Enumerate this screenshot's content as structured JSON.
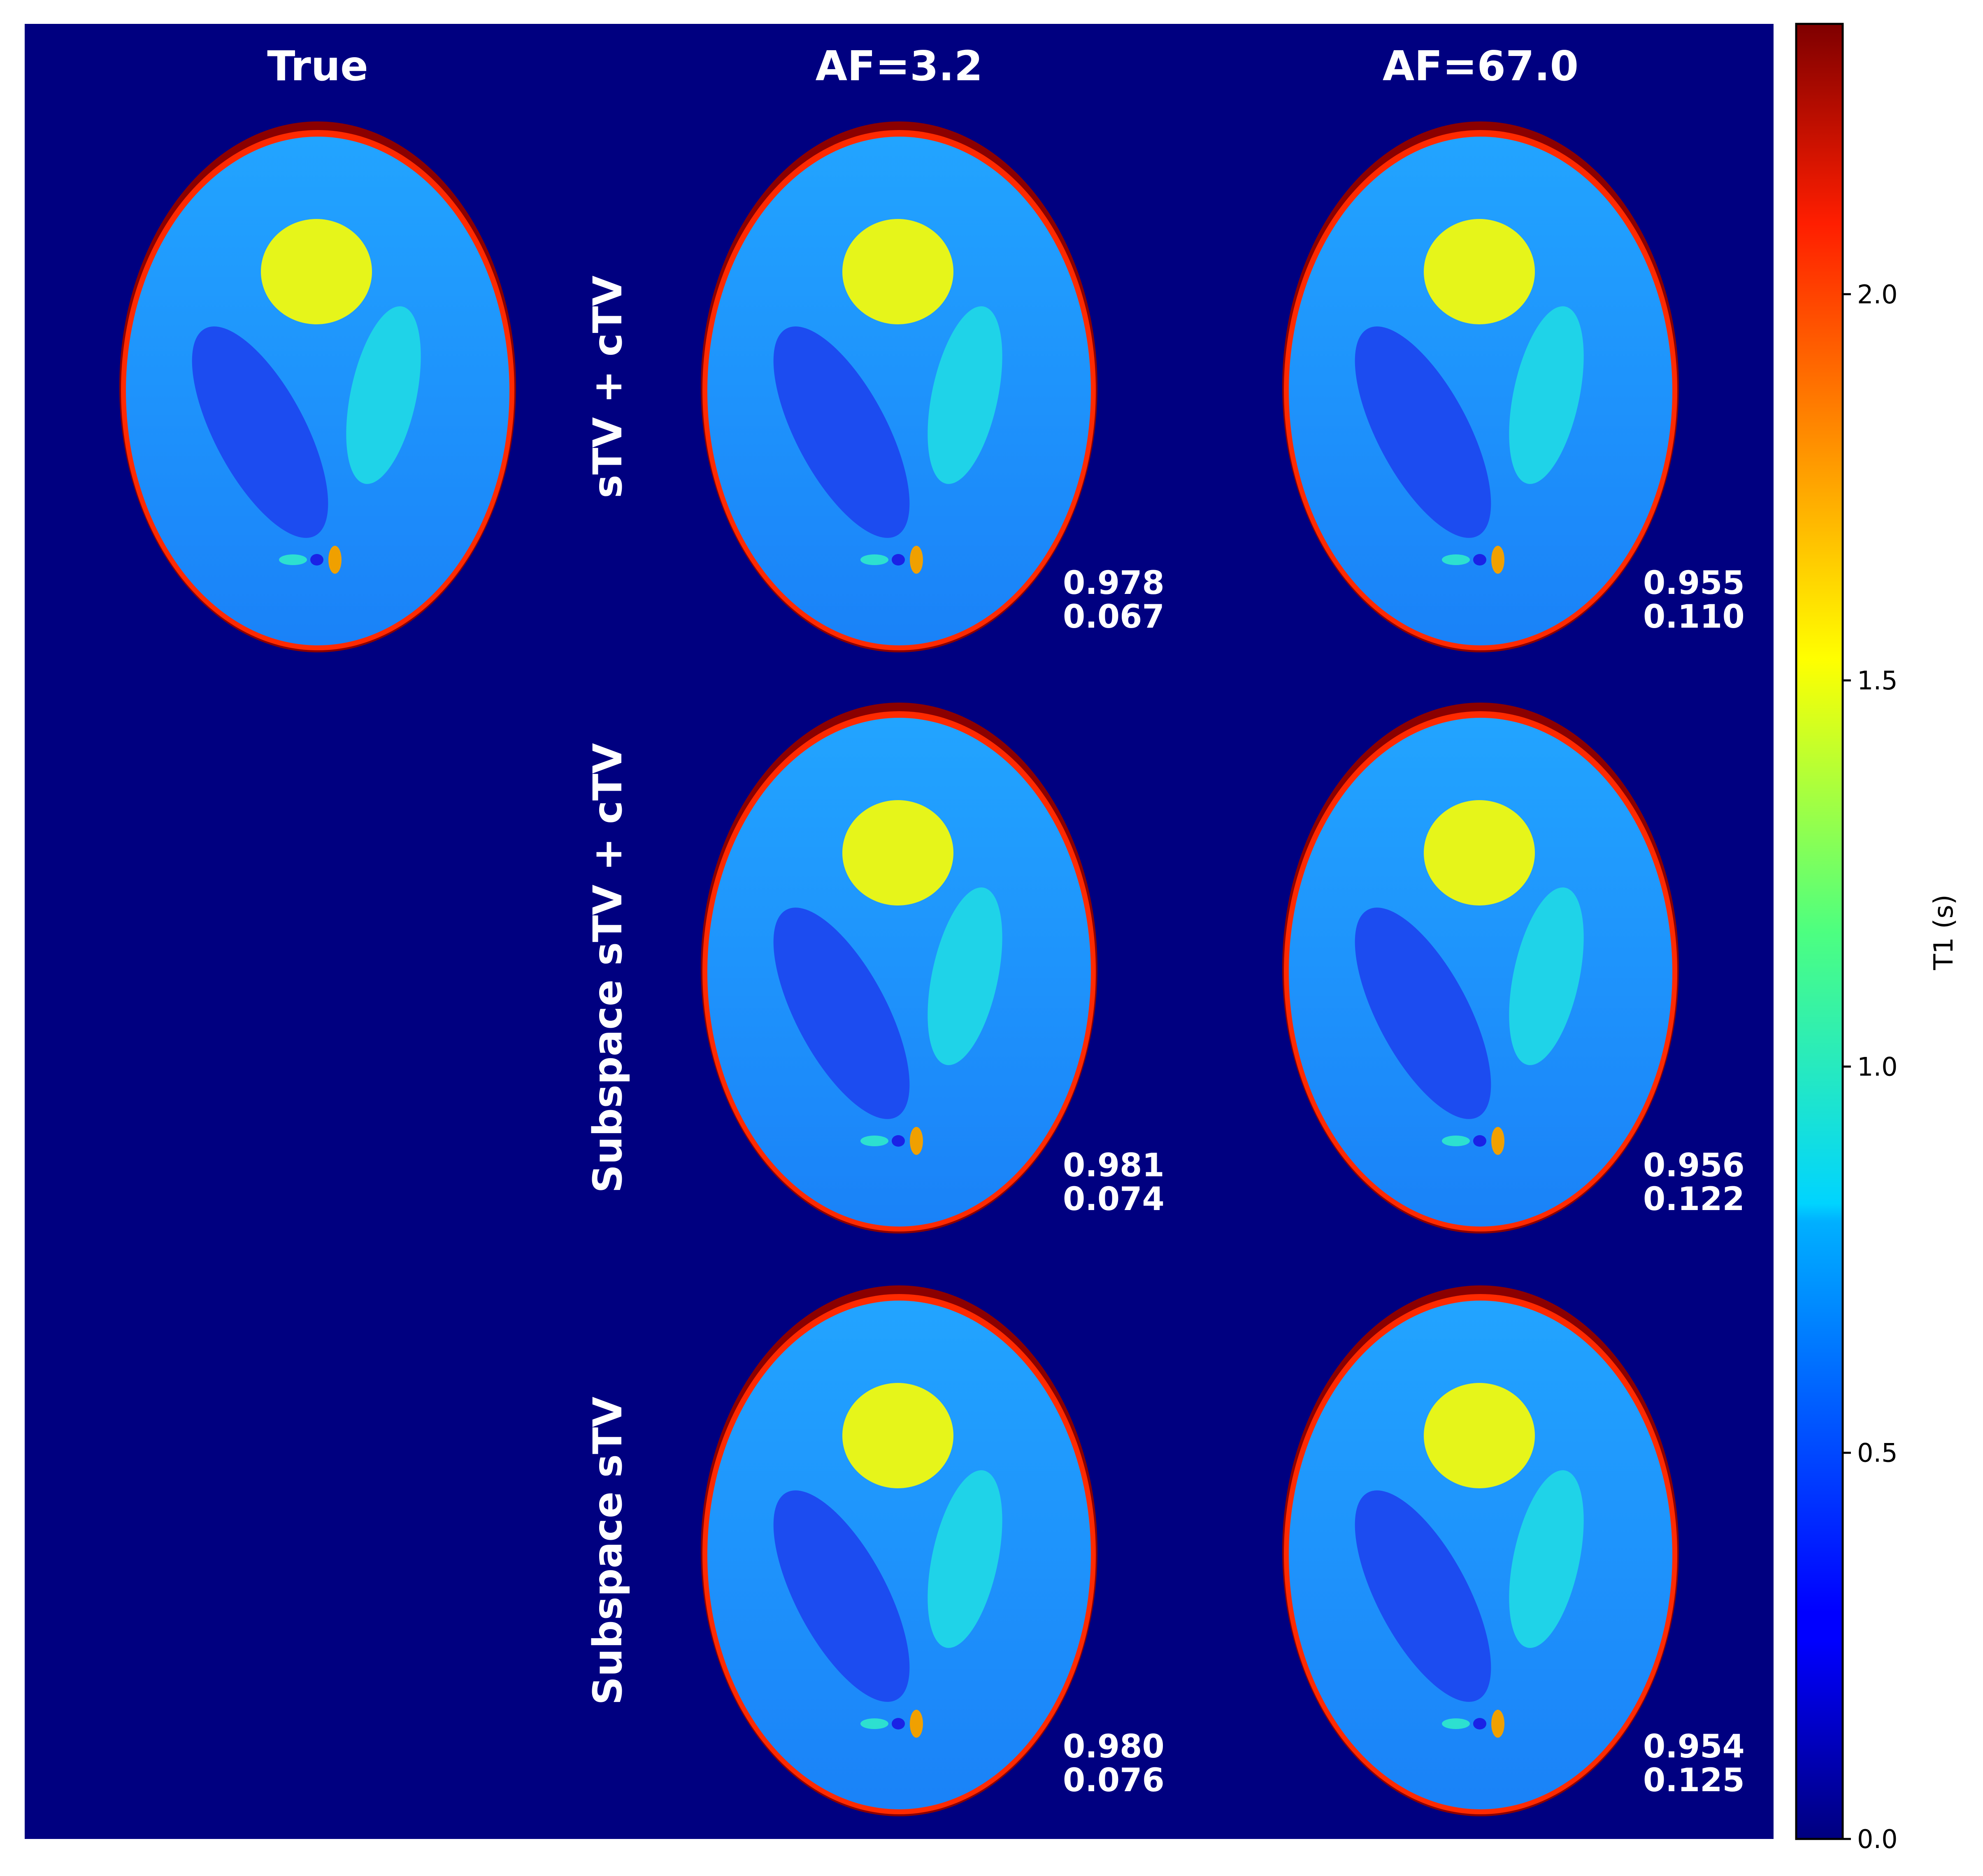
{
  "column_headers": {
    "true": "True",
    "af_low": "AF=3.2",
    "af_high": "AF=67.0"
  },
  "row_labels": {
    "row1": "sTV + cTV",
    "row2": "Subspace sTV + cTV",
    "row3": "Subspace sTV"
  },
  "metrics": {
    "r1_af32": {
      "top": "0.978",
      "bottom": "0.067"
    },
    "r1_af67": {
      "top": "0.955",
      "bottom": "0.110"
    },
    "r2_af32": {
      "top": "0.981",
      "bottom": "0.074"
    },
    "r2_af67": {
      "top": "0.956",
      "bottom": "0.122"
    },
    "r3_af32": {
      "top": "0.980",
      "bottom": "0.076"
    },
    "r3_af67": {
      "top": "0.954",
      "bottom": "0.125"
    }
  },
  "colorbar": {
    "label": "T1 (s)",
    "ticks": [
      "0.0",
      "0.5",
      "1.0",
      "1.5",
      "2.0"
    ],
    "min": 0.0,
    "max": 2.35
  },
  "colors": {
    "background": "#000080",
    "ring_outer": "#8b0000",
    "ring_inner": "#ff2000",
    "body": "#1e90ff",
    "circle": "#e6f51a",
    "left_ellipse": "#1c4cf0",
    "right_ellipse": "#1fd3e8"
  }
}
